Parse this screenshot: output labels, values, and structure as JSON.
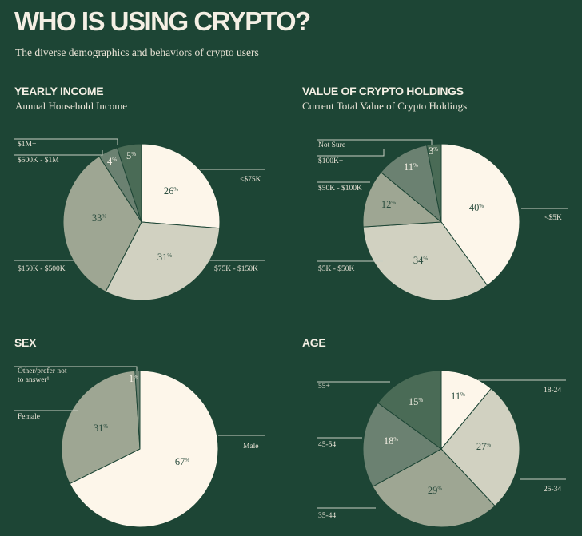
{
  "header": {
    "title": "WHO IS USING CRYPTO?",
    "subtitle": "The diverse demographics and behaviors of crypto users"
  },
  "chart_data": [
    {
      "type": "pie",
      "title": "YEARLY INCOME",
      "subtitle": "Annual Household Income",
      "slices": [
        {
          "label": "<$75K",
          "value": 26,
          "color": "#fdf6ea"
        },
        {
          "label": "$75K - $150K",
          "value": 31,
          "color": "#d1d1c1"
        },
        {
          "label": "$150K - $500K",
          "value": 33,
          "color": "#9ea693"
        },
        {
          "label": "$500K - $1M",
          "value": 4,
          "color": "#6b8171"
        },
        {
          "label": "$1M+",
          "value": 5,
          "color": "#4a6b56"
        }
      ]
    },
    {
      "type": "pie",
      "title": "VALUE OF CRYPTO HOLDINGS",
      "subtitle": "Current Total Value of Crypto Holdings",
      "slices": [
        {
          "label": "<$5K",
          "value": 40,
          "color": "#fdf6ea"
        },
        {
          "label": "$5K - $50K",
          "value": 34,
          "color": "#d1d1c1"
        },
        {
          "label": "$50K - $100K",
          "value": 12,
          "color": "#9ea693"
        },
        {
          "label": "$100K+",
          "value": 11,
          "color": "#6b8171"
        },
        {
          "label": "Not Sure",
          "value": 3,
          "color": "#4a6b56"
        }
      ]
    },
    {
      "type": "pie",
      "title": "SEX",
      "subtitle": "",
      "slices": [
        {
          "label": "Male",
          "value": 67,
          "color": "#fdf6ea"
        },
        {
          "label": "Female",
          "value": 31,
          "color": "#9ea693"
        },
        {
          "label": "Other/prefer not to answer¹",
          "value": 1,
          "color": "#6b8171"
        }
      ]
    },
    {
      "type": "pie",
      "title": "AGE",
      "subtitle": "",
      "slices": [
        {
          "label": "18-24",
          "value": 11,
          "color": "#fdf6ea"
        },
        {
          "label": "25-34",
          "value": 27,
          "color": "#d1d1c1"
        },
        {
          "label": "35-44",
          "value": 29,
          "color": "#9ea693"
        },
        {
          "label": "45-54",
          "value": 18,
          "color": "#6b8171"
        },
        {
          "label": "55+",
          "value": 15,
          "color": "#4a6b56"
        }
      ]
    }
  ]
}
